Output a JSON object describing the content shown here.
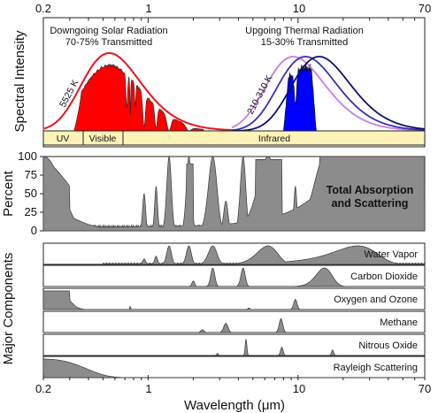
{
  "chart_data": [
    {
      "type": "area",
      "panel": "spectral-intensity",
      "ylabel": "Spectral Intensity",
      "x_scale": "log",
      "xlim": [
        0.2,
        70
      ],
      "top_ticks": [
        "0.2",
        "1",
        "10",
        "70"
      ],
      "top_tick_values": [
        0.2,
        1,
        10,
        70
      ],
      "annotations": {
        "solar_title": "Downgoing Solar Radiation",
        "solar_sub": "70-75% Transmitted",
        "thermal_title": "Upgoing Thermal Radiation",
        "thermal_sub": "15-30% Transmitted",
        "solar_temp": "5525 K",
        "thermal_temp": "210-310 K"
      },
      "series": [
        {
          "name": "",
          "kind": "blackbody-envelope",
          "color": "#e8141e",
          "peak_um": 0.55
        },
        {
          "name": "",
          "kind": "transmitted-solar",
          "color": "#ff0000"
        },
        {
          "name": "",
          "kind": "blackbody",
          "color": "#c77de0",
          "peak_um": 9.3
        },
        {
          "name": "",
          "kind": "blackbody",
          "color": "#3b2fb0",
          "peak_um": 11.2
        },
        {
          "name": "",
          "kind": "blackbody",
          "color": "#0b0f6b",
          "peak_um": 13.8
        },
        {
          "name": "",
          "kind": "transmitted-thermal",
          "color": "#0000ff"
        }
      ],
      "bands": [
        {
          "label": "UV",
          "from": 0.2,
          "to": 0.4
        },
        {
          "label": "Visible",
          "from": 0.4,
          "to": 0.7
        },
        {
          "label": "Infrared",
          "from": 0.7,
          "to": 70
        }
      ],
      "band_color": "#fdf3b8"
    },
    {
      "type": "area",
      "panel": "total-absorption",
      "ylabel": "Percent",
      "ylim": [
        0,
        100
      ],
      "y_ticks": [
        0,
        25,
        50,
        75,
        100
      ],
      "label": "Total Absorption and Scattering",
      "label_lines": [
        "Total Absorption",
        "and Scattering"
      ],
      "color": "#8c8c8c"
    },
    {
      "type": "area",
      "panel": "major-components",
      "ylabel": "Major Components",
      "color": "#8c8c8c",
      "components": [
        {
          "name": "Water Vapor"
        },
        {
          "name": "Carbon Dioxide"
        },
        {
          "name": "Oxygen and Ozone"
        },
        {
          "name": "Methane"
        },
        {
          "name": "Nitrous Oxide"
        },
        {
          "name": "Rayleigh Scattering"
        }
      ],
      "x_ticks": [
        "0.2",
        "1",
        "10",
        "70"
      ],
      "x_tick_values": [
        0.2,
        1,
        10,
        70
      ],
      "xlabel": "Wavelength (μm)"
    }
  ]
}
